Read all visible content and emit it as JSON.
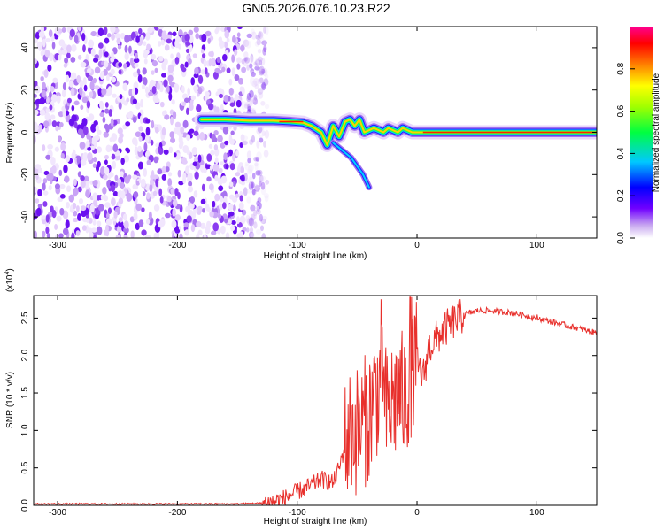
{
  "title": "GN05.2026.076.10.23.R22",
  "chart_data": [
    {
      "type": "heatmap",
      "xlabel": "Height of straight line (km)",
      "ylabel": "Frequency (Hz)",
      "xlim": [
        -320,
        150
      ],
      "ylim": [
        -50,
        50
      ],
      "xticks": [
        -300,
        -200,
        -100,
        0,
        100
      ],
      "yticks": [
        -40,
        -20,
        0,
        20,
        40
      ],
      "noise_region_x": [
        -320,
        -135
      ],
      "ridge": {
        "x": [
          -180,
          -160,
          -140,
          -120,
          -105,
          -95,
          -88,
          -80,
          -75,
          -70,
          -65,
          -60,
          -56,
          -52,
          -48,
          -44,
          -40,
          -36,
          -32,
          -28,
          -24,
          -20,
          -16,
          -12,
          -8,
          -4,
          0,
          10,
          50,
          100,
          150
        ],
        "y": [
          6,
          6,
          5.5,
          5.5,
          5,
          4.5,
          3,
          0,
          -6,
          3,
          -2,
          5,
          6,
          3,
          6,
          0,
          1,
          2,
          1,
          0,
          2,
          1,
          0,
          2,
          1,
          0,
          0,
          0,
          0,
          0,
          0
        ]
      },
      "branch": {
        "x": [
          -70,
          -55,
          -45,
          -40
        ],
        "y": [
          -5,
          -12,
          -20,
          -26
        ]
      },
      "colorbar": {
        "label": "Normalized spectral amplitude",
        "range": [
          0,
          1
        ],
        "ticks": [
          0.0,
          0.2,
          0.4,
          0.6,
          0.8
        ],
        "tick_labels": [
          "0.0",
          "0.2",
          "0.4",
          "0.6",
          "0.8"
        ],
        "colormap": "rainbow (white-purple-blue-cyan-green-yellow-red-magenta)"
      }
    },
    {
      "type": "line",
      "xlabel": "Height of straight line (km)",
      "ylabel": "SNR (10 * v/v)",
      "scale_label": "(x10",
      "scale_exponent": "4",
      "xlim": [
        -320,
        150
      ],
      "ylim": [
        0,
        2.8
      ],
      "xticks": [
        -300,
        -200,
        -100,
        0,
        100
      ],
      "yticks": [
        0.0,
        0.5,
        1.0,
        1.5,
        2.0,
        2.5
      ],
      "ytick_labels": [
        "0.0",
        "0.5",
        "1.0",
        "1.5",
        "2.0",
        "2.5"
      ],
      "color": "#e8302c",
      "series": [
        {
          "x": [
            -320,
            -200,
            -150,
            -130,
            -120,
            -110,
            -100,
            -90,
            -80,
            -70,
            -65,
            -60,
            -55,
            -50,
            -45,
            -40,
            -35,
            -30,
            -25,
            -20,
            -15,
            -10,
            -5,
            0,
            5,
            10,
            20,
            30,
            40,
            50,
            60,
            80,
            100,
            120,
            150
          ],
          "y": [
            0.02,
            0.02,
            0.02,
            0.03,
            0.05,
            0.1,
            0.18,
            0.25,
            0.35,
            0.3,
            0.5,
            0.8,
            1.0,
            1.0,
            1.1,
            1.2,
            1.5,
            1.6,
            1.2,
            1.4,
            1.5,
            1.4,
            1.8,
            1.9,
            1.7,
            2.1,
            2.3,
            2.45,
            2.55,
            2.6,
            2.6,
            2.57,
            2.5,
            2.42,
            2.3
          ]
        }
      ]
    }
  ]
}
